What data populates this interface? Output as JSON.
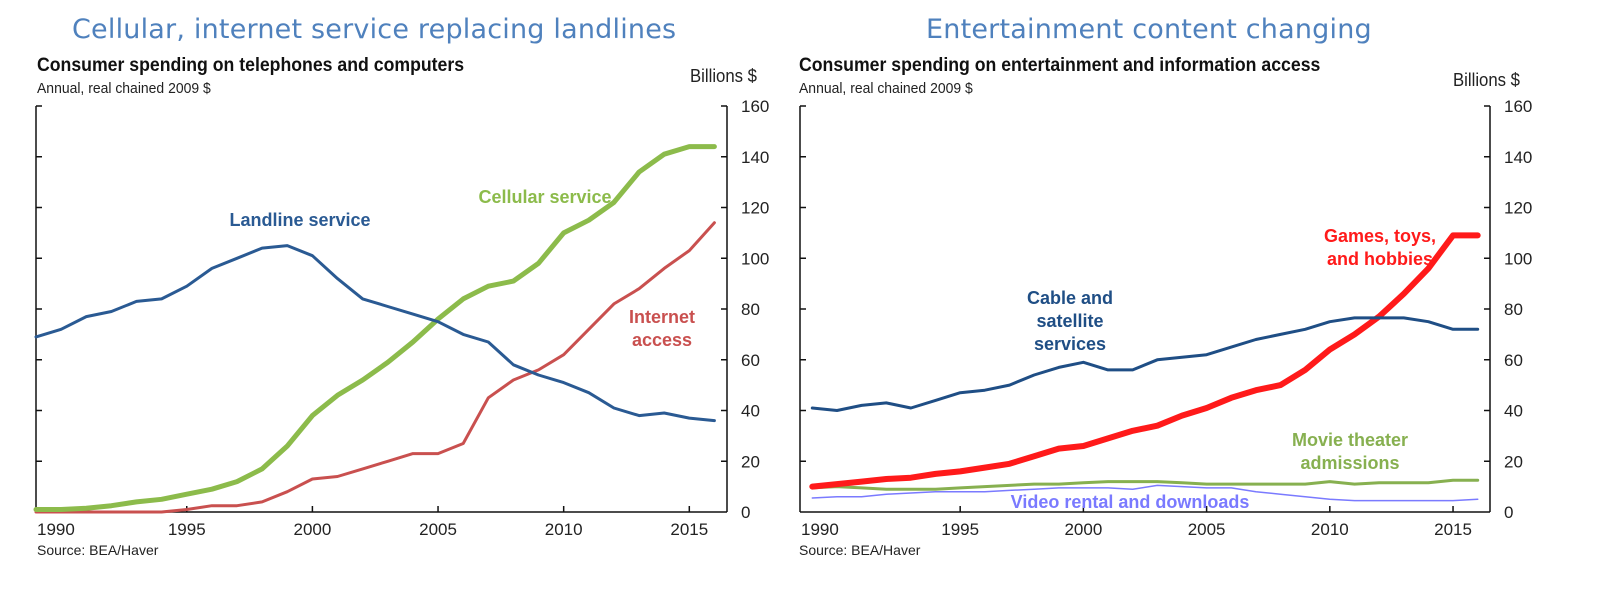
{
  "chart_data": [
    {
      "type": "line",
      "headline": "Cellular, internet service replacing landlines",
      "title": "Consumer spending on telephones and computers",
      "subtitle": "Annual, real chained 2009 $",
      "ylabel": "Billions $",
      "xlabel": "",
      "source": "Source: BEA/Haver",
      "xlim": [
        1989,
        2016.5
      ],
      "ylim": [
        0,
        160
      ],
      "x_ticks": [
        1990,
        1995,
        2000,
        2005,
        2010,
        2015
      ],
      "x_tick_labels": [
        "1990",
        "1995",
        "2000",
        "2005",
        "2010",
        "2015"
      ],
      "y_ticks": [
        0,
        20,
        40,
        60,
        80,
        100,
        120,
        140,
        160
      ],
      "y_tick_labels": [
        "0",
        "20",
        "40",
        "60",
        "80",
        "100",
        "120",
        "140",
        "160"
      ],
      "y_axis_side": "right",
      "grid": false,
      "legend": "inline labels",
      "x": [
        1989,
        1990,
        1991,
        1992,
        1993,
        1994,
        1995,
        1996,
        1997,
        1998,
        1999,
        2000,
        2001,
        2002,
        2003,
        2004,
        2005,
        2006,
        2007,
        2008,
        2009,
        2010,
        2011,
        2012,
        2013,
        2014,
        2015,
        2016
      ],
      "series": [
        {
          "name": "Landline service",
          "label_lines": [
            "Landline service"
          ],
          "color": "#2a5a93",
          "values": [
            69,
            72,
            77,
            79,
            83,
            84,
            89,
            96,
            100,
            104,
            105,
            101,
            92,
            84,
            81,
            78,
            75,
            70,
            67,
            58,
            54,
            51,
            47,
            41,
            38,
            39,
            37,
            36
          ]
        },
        {
          "name": "Cellular service",
          "label_lines": [
            "Cellular service"
          ],
          "color": "#8cbb4b",
          "values": [
            1,
            1,
            1.5,
            2.5,
            4,
            5,
            7,
            9,
            12,
            17,
            26,
            38,
            46,
            52,
            59,
            67,
            76,
            84,
            89,
            91,
            98,
            110,
            115,
            122,
            134,
            141,
            144,
            144
          ]
        },
        {
          "name": "Internet access",
          "label_lines": [
            "Internet",
            "access"
          ],
          "color": "#c9504f",
          "values": [
            0,
            0,
            0,
            0,
            0,
            0,
            1,
            2.5,
            2.5,
            4,
            8,
            13,
            14,
            17,
            20,
            23,
            23,
            27,
            45,
            52,
            56,
            62,
            72,
            82,
            88,
            96,
            103,
            114
          ]
        }
      ]
    },
    {
      "type": "line",
      "headline": "Entertainment content changing",
      "title": "Consumer spending on entertainment and information access",
      "subtitle": "Annual, real chained 2009 $",
      "ylabel": "Billions $",
      "xlabel": "",
      "source": "Source: BEA/Haver",
      "xlim": [
        1988.5,
        2016.5
      ],
      "ylim": [
        0,
        160
      ],
      "x_ticks": [
        1990,
        1995,
        2000,
        2005,
        2010,
        2015
      ],
      "x_tick_labels": [
        "1990",
        "1995",
        "2000",
        "2005",
        "2010",
        "2015"
      ],
      "y_ticks": [
        0,
        20,
        40,
        60,
        80,
        100,
        120,
        140,
        160
      ],
      "y_tick_labels": [
        "0",
        "20",
        "40",
        "60",
        "80",
        "100",
        "120",
        "140",
        "160"
      ],
      "y_axis_side": "right",
      "grid": false,
      "legend": "inline labels",
      "x": [
        1989,
        1990,
        1991,
        1992,
        1993,
        1994,
        1995,
        1996,
        1997,
        1998,
        1999,
        2000,
        2001,
        2002,
        2003,
        2004,
        2005,
        2006,
        2007,
        2008,
        2009,
        2010,
        2011,
        2012,
        2013,
        2014,
        2015,
        2016
      ],
      "series": [
        {
          "name": "Cable and satellite services",
          "label_lines": [
            "Cable and",
            "satellite",
            "services"
          ],
          "color": "#1f4e85",
          "values": [
            41,
            40,
            42,
            43,
            41,
            44,
            47,
            48,
            50,
            54,
            57,
            59,
            56,
            56,
            60,
            61,
            62,
            65,
            68,
            70,
            72,
            75,
            76.5,
            76.5,
            76.5,
            75,
            72,
            72
          ]
        },
        {
          "name": "Games, toys, and hobbies",
          "label_lines": [
            "Games, toys,",
            "and hobbies"
          ],
          "color": "#ff1a1a",
          "values": [
            10,
            11,
            12,
            13,
            13.5,
            15,
            16,
            17.5,
            19,
            22,
            25,
            26,
            29,
            32,
            34,
            38,
            41,
            45,
            48,
            50,
            56,
            64,
            70,
            77,
            86,
            96,
            109,
            109
          ]
        },
        {
          "name": "Movie theater admissions",
          "label_lines": [
            "Movie theater",
            "admissions"
          ],
          "color": "#87b050",
          "values": [
            9.5,
            10,
            9.5,
            9,
            9,
            9,
            9.5,
            10,
            10.5,
            11,
            11,
            11.5,
            12,
            12,
            12,
            11.5,
            11,
            11,
            11,
            11,
            11,
            12,
            11,
            11.5,
            11.5,
            11.5,
            12.5,
            12.5
          ]
        },
        {
          "name": "Video rental and downloads",
          "label_lines": [
            "Video rental and downloads"
          ],
          "color": "#7a7aff",
          "values": [
            5.5,
            6,
            6,
            7,
            7.5,
            8,
            8,
            8,
            8.5,
            9,
            9.5,
            9.5,
            9.5,
            9,
            10.5,
            10,
            9.5,
            9.5,
            8,
            7,
            6,
            5,
            4.5,
            4.5,
            4.5,
            4.5,
            4.5,
            5
          ]
        }
      ]
    }
  ]
}
